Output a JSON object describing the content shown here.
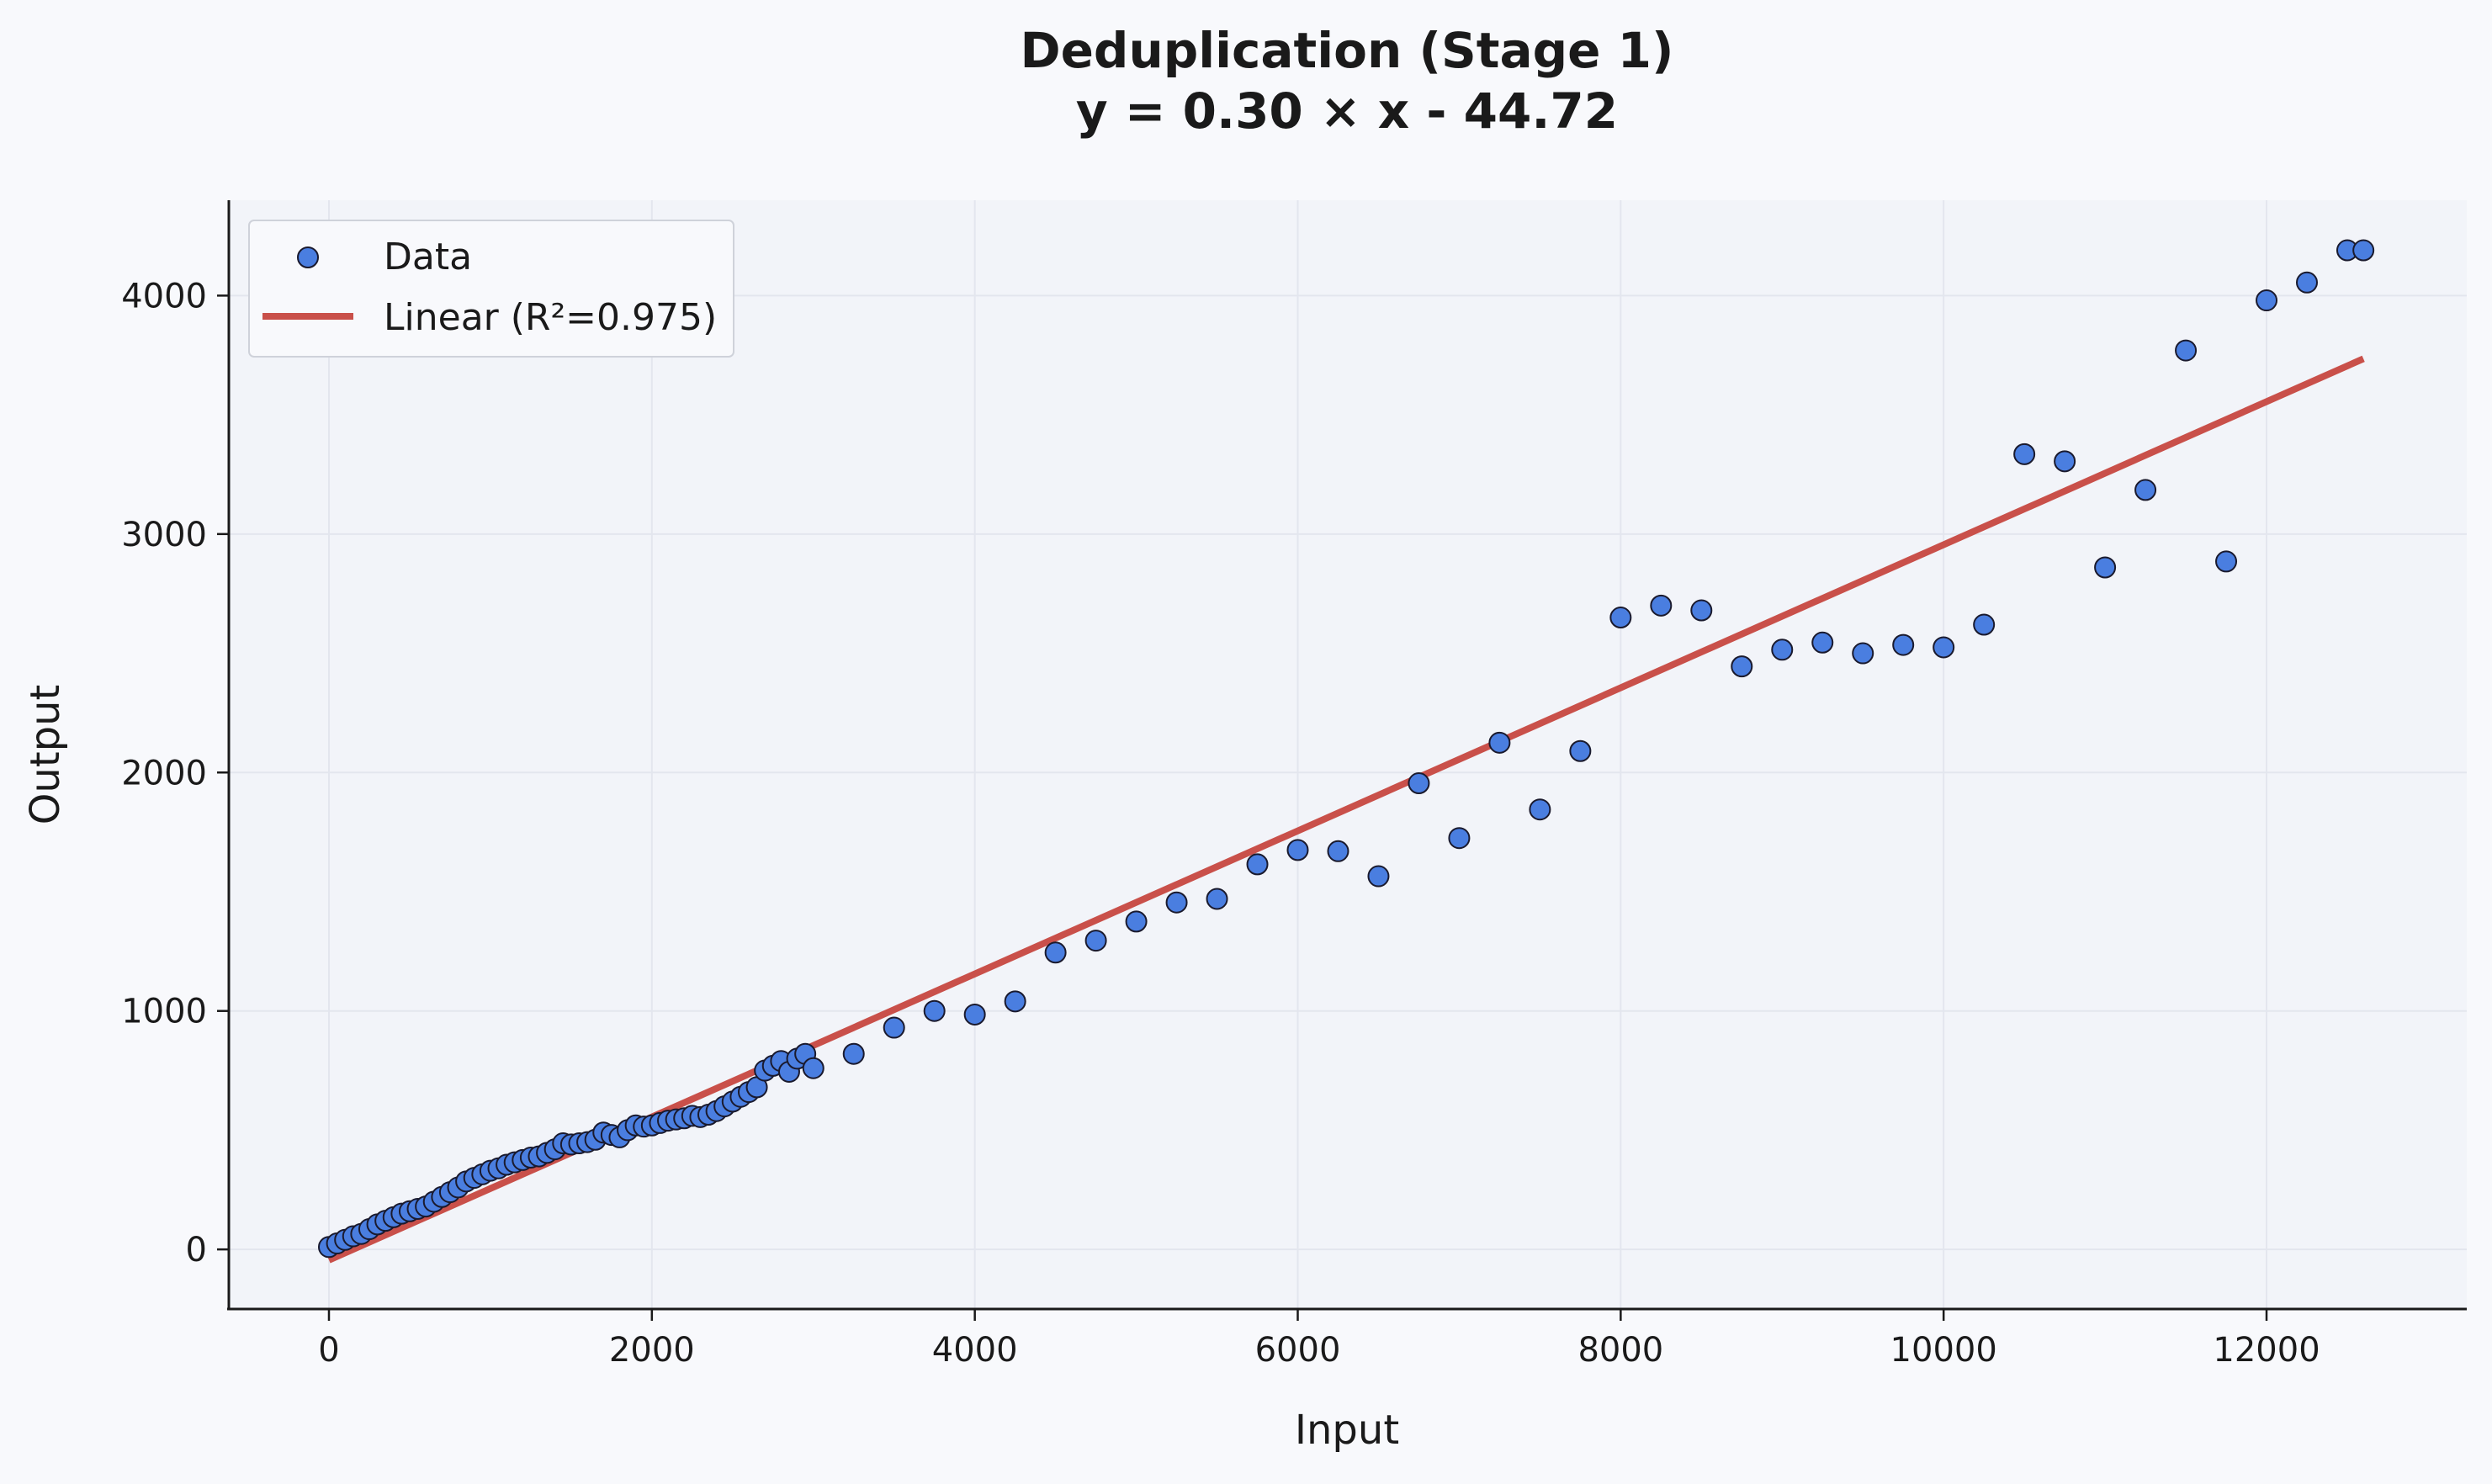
{
  "chart_data": {
    "type": "scatter",
    "title": "Deduplication (Stage 1)",
    "subtitle": "y = 0.30 × x - 44.72",
    "xlabel": "Input",
    "ylabel": "Output",
    "xlim": [
      -620,
      13240
    ],
    "ylim": [
      -250,
      4400
    ],
    "x_ticks": [
      0,
      2000,
      4000,
      6000,
      8000,
      10000,
      12000
    ],
    "y_ticks": [
      0,
      1000,
      2000,
      3000,
      4000
    ],
    "grid": true,
    "legend_position": "top-left",
    "legend": {
      "data_label": "Data",
      "fit_label": "Linear (R²=0.975)"
    },
    "fit": {
      "slope": 0.3,
      "intercept": -44.72,
      "r2": 0.975,
      "x_range": [
        0,
        12600
      ]
    },
    "colors": {
      "point_fill": "#4a7ee0",
      "point_edge": "#1a1a2e",
      "fit_line": "#c9504a",
      "plot_bg": "#f2f4f9",
      "page_bg": "#f8f9fc",
      "grid": "#e3e6ee"
    },
    "series": [
      {
        "name": "Data",
        "points": [
          [
            0,
            10
          ],
          [
            50,
            25
          ],
          [
            100,
            40
          ],
          [
            150,
            55
          ],
          [
            200,
            65
          ],
          [
            250,
            85
          ],
          [
            300,
            105
          ],
          [
            350,
            120
          ],
          [
            400,
            135
          ],
          [
            450,
            150
          ],
          [
            500,
            160
          ],
          [
            550,
            170
          ],
          [
            600,
            180
          ],
          [
            650,
            200
          ],
          [
            700,
            220
          ],
          [
            750,
            240
          ],
          [
            800,
            260
          ],
          [
            850,
            285
          ],
          [
            900,
            300
          ],
          [
            950,
            315
          ],
          [
            1000,
            330
          ],
          [
            1050,
            340
          ],
          [
            1100,
            355
          ],
          [
            1150,
            365
          ],
          [
            1200,
            375
          ],
          [
            1250,
            385
          ],
          [
            1300,
            390
          ],
          [
            1350,
            405
          ],
          [
            1400,
            420
          ],
          [
            1450,
            445
          ],
          [
            1500,
            440
          ],
          [
            1550,
            445
          ],
          [
            1600,
            450
          ],
          [
            1650,
            460
          ],
          [
            1700,
            490
          ],
          [
            1750,
            480
          ],
          [
            1800,
            470
          ],
          [
            1850,
            500
          ],
          [
            1900,
            520
          ],
          [
            1950,
            515
          ],
          [
            2000,
            520
          ],
          [
            2050,
            530
          ],
          [
            2100,
            540
          ],
          [
            2150,
            545
          ],
          [
            2200,
            550
          ],
          [
            2250,
            560
          ],
          [
            2300,
            555
          ],
          [
            2350,
            565
          ],
          [
            2400,
            580
          ],
          [
            2450,
            600
          ],
          [
            2500,
            620
          ],
          [
            2550,
            640
          ],
          [
            2600,
            660
          ],
          [
            2650,
            680
          ],
          [
            2700,
            750
          ],
          [
            2750,
            770
          ],
          [
            2800,
            790
          ],
          [
            2850,
            745
          ],
          [
            2900,
            800
          ],
          [
            2950,
            820
          ],
          [
            3000,
            760
          ],
          [
            3250,
            820
          ],
          [
            3500,
            930
          ],
          [
            3750,
            1000
          ],
          [
            4000,
            985
          ],
          [
            4250,
            1040
          ],
          [
            4500,
            1245
          ],
          [
            4750,
            1295
          ],
          [
            5000,
            1375
          ],
          [
            5250,
            1455
          ],
          [
            5500,
            1470
          ],
          [
            5750,
            1615
          ],
          [
            6000,
            1675
          ],
          [
            6250,
            1670
          ],
          [
            6500,
            1565
          ],
          [
            6750,
            1955
          ],
          [
            7000,
            1725
          ],
          [
            7250,
            2125
          ],
          [
            7500,
            1845
          ],
          [
            7750,
            2090
          ],
          [
            8000,
            2650
          ],
          [
            8250,
            2700
          ],
          [
            8500,
            2680
          ],
          [
            8750,
            2445
          ],
          [
            9000,
            2515
          ],
          [
            9250,
            2545
          ],
          [
            9500,
            2500
          ],
          [
            9750,
            2535
          ],
          [
            10000,
            2525
          ],
          [
            10250,
            2620
          ],
          [
            10500,
            3335
          ],
          [
            10750,
            3305
          ],
          [
            11000,
            2860
          ],
          [
            11250,
            3185
          ],
          [
            11500,
            3770
          ],
          [
            11750,
            2885
          ],
          [
            12000,
            3980
          ],
          [
            12250,
            4055
          ],
          [
            12500,
            4190
          ],
          [
            12600,
            4190
          ]
        ]
      }
    ]
  }
}
